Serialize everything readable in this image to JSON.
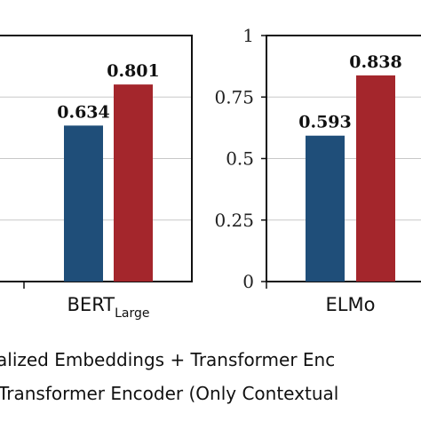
{
  "chart_data": [
    {
      "type": "bar",
      "categories": [
        "BERT_Large"
      ],
      "category_display": [
        {
          "main": "BERT",
          "sub": "Large"
        }
      ],
      "series": [
        {
          "values": [
            0.634
          ],
          "color": "#1f4e79"
        },
        {
          "values": [
            0.801
          ],
          "color": "#a4262c"
        }
      ],
      "data_labels": [
        "0.634",
        "0.801"
      ],
      "ylim": [
        0,
        1
      ]
    },
    {
      "type": "bar",
      "categories": [
        "ELMo"
      ],
      "category_display": [
        {
          "main": "ELMo",
          "sub": ""
        }
      ],
      "series": [
        {
          "values": [
            0.593
          ],
          "color": "#1f4e79"
        },
        {
          "values": [
            0.838
          ],
          "color": "#a4262c"
        }
      ],
      "data_labels": [
        "0.593",
        "0.838"
      ],
      "ylim": [
        0,
        1
      ],
      "yticks": [
        "0",
        "0.25",
        "0.5",
        "0.75",
        "1"
      ]
    }
  ],
  "legend": [
    "alized Embeddings + Transformer Enc",
    "Transformer Encoder (Only Contextual"
  ]
}
